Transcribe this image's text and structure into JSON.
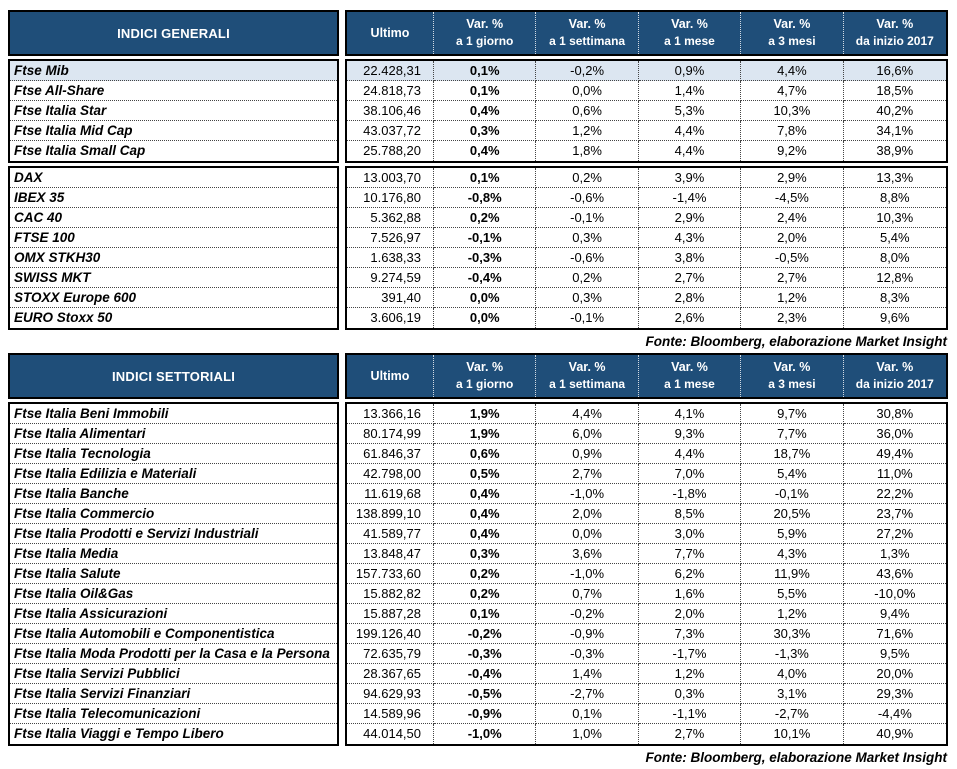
{
  "colors": {
    "header_bg": "#1F4E79",
    "header_text": "#FFFFFF",
    "highlight_row": "#DCE6F1",
    "border": "#000000"
  },
  "source_note": "Fonte: Bloomberg, elaborazione Market Insight",
  "columns": [
    {
      "label": "Ultimo",
      "sub": ""
    },
    {
      "label": "Var. %",
      "sub": "a 1 giorno"
    },
    {
      "label": "Var. %",
      "sub": "a 1 settimana"
    },
    {
      "label": "Var. %",
      "sub": "a 1 mese"
    },
    {
      "label": "Var. %",
      "sub": "a 3 mesi"
    },
    {
      "label": "Var. %",
      "sub": "da inizio 2017"
    }
  ],
  "tables": [
    {
      "title": "INDICI GENERALI",
      "sections": [
        {
          "rows": [
            {
              "name": "Ftse Mib",
              "highlight": true,
              "values": [
                "22.428,31",
                "0,1%",
                "-0,2%",
                "0,9%",
                "4,4%",
                "16,6%"
              ]
            },
            {
              "name": "Ftse All-Share",
              "highlight": false,
              "values": [
                "24.818,73",
                "0,1%",
                "0,0%",
                "1,4%",
                "4,7%",
                "18,5%"
              ]
            },
            {
              "name": "Ftse Italia Star",
              "highlight": false,
              "values": [
                "38.106,46",
                "0,4%",
                "0,6%",
                "5,3%",
                "10,3%",
                "40,2%"
              ]
            },
            {
              "name": "Ftse Italia Mid Cap",
              "highlight": false,
              "values": [
                "43.037,72",
                "0,3%",
                "1,2%",
                "4,4%",
                "7,8%",
                "34,1%"
              ]
            },
            {
              "name": "Ftse Italia Small Cap",
              "highlight": false,
              "values": [
                "25.788,20",
                "0,4%",
                "1,8%",
                "4,4%",
                "9,2%",
                "38,9%"
              ]
            }
          ]
        },
        {
          "rows": [
            {
              "name": "DAX",
              "highlight": false,
              "values": [
                "13.003,70",
                "0,1%",
                "0,2%",
                "3,9%",
                "2,9%",
                "13,3%"
              ]
            },
            {
              "name": "IBEX 35",
              "highlight": false,
              "values": [
                "10.176,80",
                "-0,8%",
                "-0,6%",
                "-1,4%",
                "-4,5%",
                "8,8%"
              ]
            },
            {
              "name": "CAC 40",
              "highlight": false,
              "values": [
                "5.362,88",
                "0,2%",
                "-0,1%",
                "2,9%",
                "2,4%",
                "10,3%"
              ]
            },
            {
              "name": "FTSE 100",
              "highlight": false,
              "values": [
                "7.526,97",
                "-0,1%",
                "0,3%",
                "4,3%",
                "2,0%",
                "5,4%"
              ]
            },
            {
              "name": "OMX STKH30",
              "highlight": false,
              "values": [
                "1.638,33",
                "-0,3%",
                "-0,6%",
                "3,8%",
                "-0,5%",
                "8,0%"
              ]
            },
            {
              "name": "SWISS MKT",
              "highlight": false,
              "values": [
                "9.274,59",
                "-0,4%",
                "0,2%",
                "2,7%",
                "2,7%",
                "12,8%"
              ]
            },
            {
              "name": "STOXX Europe 600",
              "highlight": false,
              "values": [
                "391,40",
                "0,0%",
                "0,3%",
                "2,8%",
                "1,2%",
                "8,3%"
              ]
            },
            {
              "name": "EURO Stoxx 50",
              "highlight": false,
              "values": [
                "3.606,19",
                "0,0%",
                "-0,1%",
                "2,6%",
                "2,3%",
                "9,6%"
              ]
            }
          ]
        }
      ]
    },
    {
      "title": "INDICI SETTORIALI",
      "sections": [
        {
          "rows": [
            {
              "name": "Ftse Italia Beni Immobili",
              "highlight": false,
              "values": [
                "13.366,16",
                "1,9%",
                "4,4%",
                "4,1%",
                "9,7%",
                "30,8%"
              ]
            },
            {
              "name": "Ftse Italia Alimentari",
              "highlight": false,
              "values": [
                "80.174,99",
                "1,9%",
                "6,0%",
                "9,3%",
                "7,7%",
                "36,0%"
              ]
            },
            {
              "name": "Ftse Italia Tecnologia",
              "highlight": false,
              "values": [
                "61.846,37",
                "0,6%",
                "0,9%",
                "4,4%",
                "18,7%",
                "49,4%"
              ]
            },
            {
              "name": "Ftse Italia Edilizia e Materiali",
              "highlight": false,
              "values": [
                "42.798,00",
                "0,5%",
                "2,7%",
                "7,0%",
                "5,4%",
                "11,0%"
              ]
            },
            {
              "name": "Ftse Italia Banche",
              "highlight": false,
              "values": [
                "11.619,68",
                "0,4%",
                "-1,0%",
                "-1,8%",
                "-0,1%",
                "22,2%"
              ]
            },
            {
              "name": "Ftse Italia Commercio",
              "highlight": false,
              "values": [
                "138.899,10",
                "0,4%",
                "2,0%",
                "8,5%",
                "20,5%",
                "23,7%"
              ]
            },
            {
              "name": "Ftse Italia Prodotti e Servizi Industriali",
              "highlight": false,
              "values": [
                "41.589,77",
                "0,4%",
                "0,0%",
                "3,0%",
                "5,9%",
                "27,2%"
              ]
            },
            {
              "name": "Ftse Italia Media",
              "highlight": false,
              "values": [
                "13.848,47",
                "0,3%",
                "3,6%",
                "7,7%",
                "4,3%",
                "1,3%"
              ]
            },
            {
              "name": "Ftse Italia Salute",
              "highlight": false,
              "values": [
                "157.733,60",
                "0,2%",
                "-1,0%",
                "6,2%",
                "11,9%",
                "43,6%"
              ]
            },
            {
              "name": "Ftse Italia Oil&Gas",
              "highlight": false,
              "values": [
                "15.882,82",
                "0,2%",
                "0,7%",
                "1,6%",
                "5,5%",
                "-10,0%"
              ]
            },
            {
              "name": "Ftse Italia Assicurazioni",
              "highlight": false,
              "values": [
                "15.887,28",
                "0,1%",
                "-0,2%",
                "2,0%",
                "1,2%",
                "9,4%"
              ]
            },
            {
              "name": "Ftse Italia Automobili e Componentistica",
              "highlight": false,
              "values": [
                "199.126,40",
                "-0,2%",
                "-0,9%",
                "7,3%",
                "30,3%",
                "71,6%"
              ]
            },
            {
              "name": "Ftse Italia Moda Prodotti per la Casa e la Persona",
              "highlight": false,
              "values": [
                "72.635,79",
                "-0,3%",
                "-0,3%",
                "-1,7%",
                "-1,3%",
                "9,5%"
              ]
            },
            {
              "name": "Ftse Italia Servizi Pubblici",
              "highlight": false,
              "values": [
                "28.367,65",
                "-0,4%",
                "1,4%",
                "1,2%",
                "4,0%",
                "20,0%"
              ]
            },
            {
              "name": "Ftse Italia Servizi Finanziari",
              "highlight": false,
              "values": [
                "94.629,93",
                "-0,5%",
                "-2,7%",
                "0,3%",
                "3,1%",
                "29,3%"
              ]
            },
            {
              "name": "Ftse Italia Telecomunicazioni",
              "highlight": false,
              "values": [
                "14.589,96",
                "-0,9%",
                "0,1%",
                "-1,1%",
                "-2,7%",
                "-4,4%"
              ]
            },
            {
              "name": "Ftse Italia Viaggi e Tempo Libero",
              "highlight": false,
              "values": [
                "44.014,50",
                "-1,0%",
                "1,0%",
                "2,7%",
                "10,1%",
                "40,9%"
              ]
            }
          ]
        }
      ]
    }
  ]
}
